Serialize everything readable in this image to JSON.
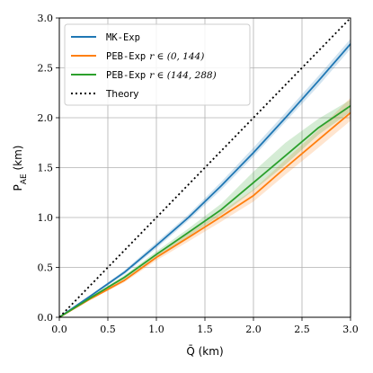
{
  "chart_data": {
    "type": "line",
    "xlabel": "Q̄ (km)",
    "ylabel": "P",
    "ylabel_sub": "AE",
    "ylabel_unit": " (km)",
    "xlim": [
      0,
      3
    ],
    "ylim": [
      0,
      3
    ],
    "xticks": [
      0.0,
      0.5,
      1.0,
      1.5,
      2.0,
      2.5,
      3.0
    ],
    "yticks": [
      0.0,
      0.5,
      1.0,
      1.5,
      2.0,
      2.5,
      3.0
    ],
    "grid": true,
    "legend_position": "top-left",
    "series": [
      {
        "name": "MK-Exp",
        "color": "#1f77b4",
        "x": [
          0,
          0.33,
          0.67,
          1.0,
          1.33,
          1.67,
          2.0,
          2.33,
          2.67,
          3.0
        ],
        "y": [
          0,
          0.22,
          0.45,
          0.72,
          1.0,
          1.32,
          1.65,
          2.0,
          2.37,
          2.74
        ],
        "band_lower": [
          0,
          0.21,
          0.43,
          0.69,
          0.97,
          1.28,
          1.61,
          1.96,
          2.32,
          2.69
        ],
        "band_upper": [
          0,
          0.23,
          0.47,
          0.75,
          1.03,
          1.36,
          1.7,
          2.05,
          2.42,
          2.79
        ]
      },
      {
        "name": "PEB-Exp",
        "name_range": "r ∈ (0, 144)",
        "color": "#ff7f0e",
        "x": [
          0,
          0.33,
          0.67,
          1.0,
          1.33,
          1.67,
          2.0,
          2.33,
          2.67,
          3.0
        ],
        "y": [
          0,
          0.19,
          0.37,
          0.6,
          0.8,
          1.01,
          1.22,
          1.5,
          1.78,
          2.05
        ],
        "band_lower": [
          0,
          0.18,
          0.35,
          0.57,
          0.76,
          0.96,
          1.16,
          1.43,
          1.7,
          1.97
        ],
        "band_upper": [
          0,
          0.2,
          0.39,
          0.63,
          0.84,
          1.06,
          1.28,
          1.58,
          1.88,
          2.2
        ]
      },
      {
        "name": "PEB-Exp",
        "name_range": "r ∈ (144, 288)",
        "color": "#2ca02c",
        "x": [
          0,
          0.33,
          0.67,
          1.0,
          1.33,
          1.67,
          2.0,
          2.33,
          2.67,
          3.0
        ],
        "y": [
          0,
          0.2,
          0.4,
          0.63,
          0.85,
          1.08,
          1.35,
          1.62,
          1.9,
          2.12
        ],
        "band_lower": [
          0,
          0.19,
          0.38,
          0.6,
          0.81,
          1.03,
          1.27,
          1.53,
          1.83,
          2.06
        ],
        "band_upper": [
          0,
          0.21,
          0.42,
          0.66,
          0.89,
          1.14,
          1.46,
          1.75,
          1.99,
          2.18
        ]
      },
      {
        "name": "Theory",
        "color": "#000000",
        "dashed": true,
        "x": [
          0,
          3
        ],
        "y": [
          0,
          3
        ]
      }
    ]
  }
}
